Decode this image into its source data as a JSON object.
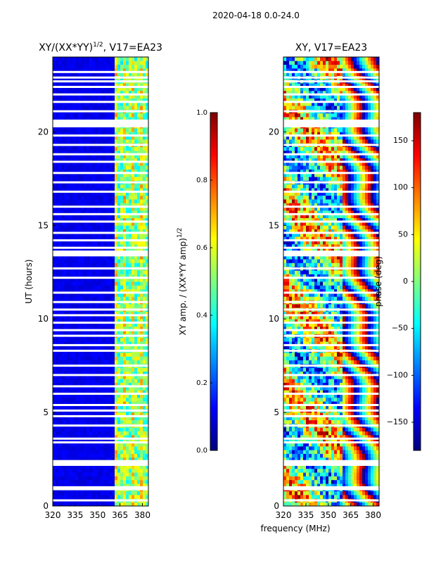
{
  "figure": {
    "suptitle": "2020-04-18 0.0-24.0",
    "xlabel": "frequency (MHz)"
  },
  "colormap": [
    "#00007f",
    "#0000ff",
    "#007fff",
    "#00ffff",
    "#7fff7f",
    "#ffff00",
    "#ff7f00",
    "#ff0000",
    "#7f0000"
  ],
  "chart_data": [
    {
      "type": "heatmap",
      "title_main": "XY/(XX*YY)",
      "title_exp": "1/2",
      "title_rest": ", V17=EA23",
      "xlabel": "",
      "ylabel": "UT (hours)",
      "xlim": [
        320,
        384
      ],
      "ylim": [
        0,
        24
      ],
      "xticks": [
        320,
        335,
        350,
        365,
        380
      ],
      "yticks": [
        0,
        5,
        10,
        15,
        20
      ],
      "colorbar": {
        "label_main": "XY amp. / (XX*YY amp)",
        "label_exp": "1/2",
        "range": [
          0.0,
          1.0
        ],
        "ticks": [
          "0.0",
          "0.2",
          "0.4",
          "0.6",
          "0.8",
          "1.0"
        ]
      },
      "data_description": "Normalized XY amplitude is low (~0.1) across 320-360 MHz and elevated (~0.4-0.6) in 360-384 MHz; horizontal white bands mark flagged times."
    },
    {
      "type": "heatmap",
      "title_main": "XY, V17=EA23",
      "xlabel": "",
      "ylabel": "",
      "xlim": [
        320,
        384
      ],
      "ylim": [
        0,
        24
      ],
      "xticks": [
        320,
        335,
        350,
        365,
        380
      ],
      "yticks": [
        0,
        5,
        10,
        15,
        20
      ],
      "colorbar": {
        "label": "phase (deg)",
        "range": [
          -180,
          180
        ],
        "ticks": [
          "−150",
          "−100",
          "−50",
          "0",
          "50",
          "100",
          "150"
        ]
      },
      "data_description": "XY phase spans -180 to 180 deg with noisy structure at low frequencies and coherent wrapping fringes above ~355 MHz."
    }
  ],
  "flagged_hours": [
    0.3,
    0.9,
    1.0,
    2.2,
    2.3,
    2.4,
    3.4,
    3.6,
    4.3,
    4.8,
    5.1,
    5.4,
    6.0,
    6.4,
    7.0,
    7.5,
    8.3,
    8.6,
    9.1,
    9.4,
    9.8,
    10.2,
    10.5,
    10.9,
    11.4,
    12.2,
    12.7,
    13.4,
    13.5,
    13.6,
    13.8,
    14.2,
    14.6,
    15.2,
    15.6,
    16.0,
    16.8,
    17.3,
    17.8,
    18.4,
    18.8,
    19.3,
    19.8,
    20.3,
    20.4,
    20.5,
    20.6,
    21.1,
    21.6,
    22.0,
    22.4,
    22.7,
    22.9,
    23.2
  ]
}
